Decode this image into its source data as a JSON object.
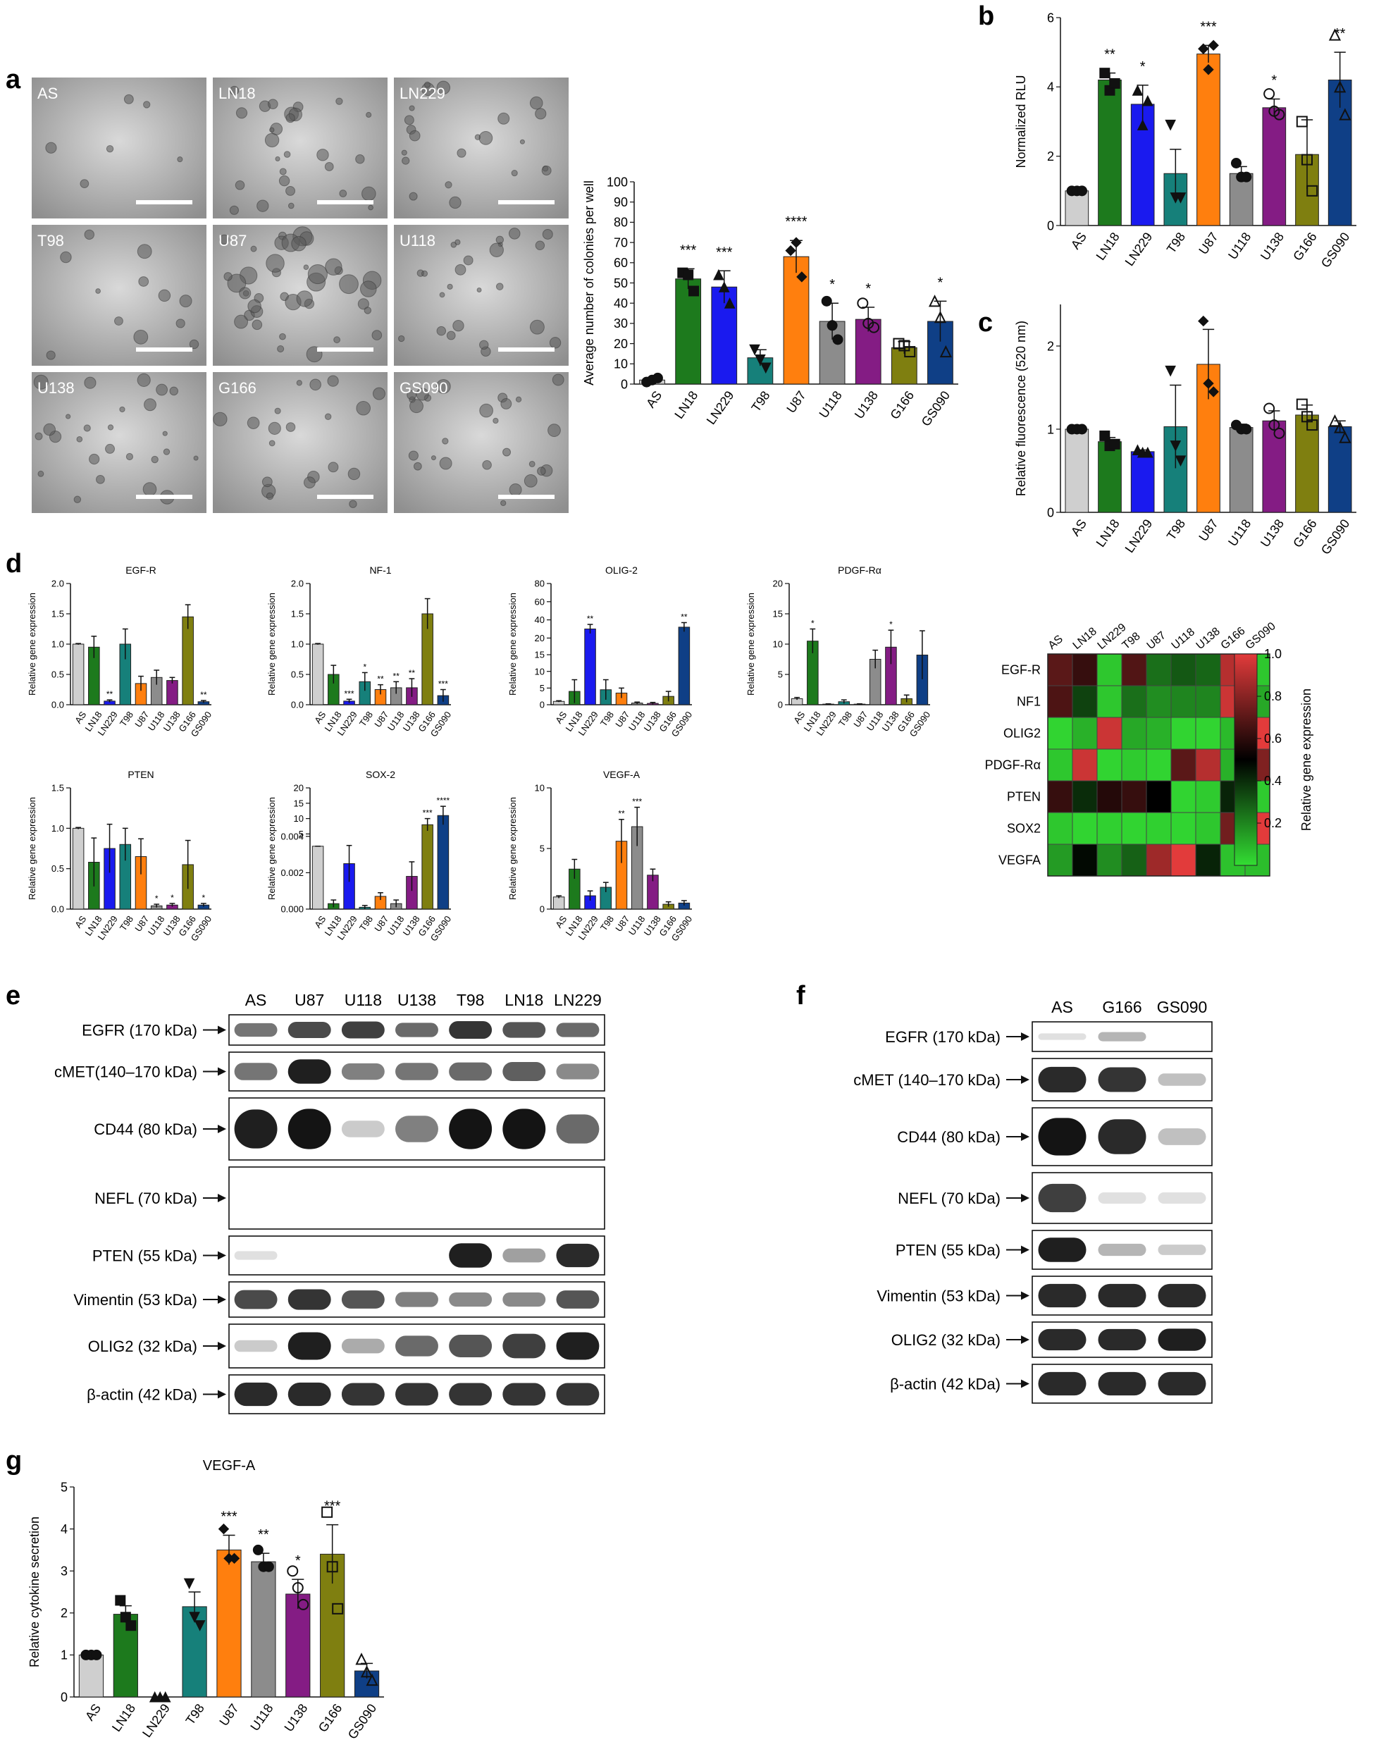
{
  "panel_letters": {
    "a": "a",
    "b": "b",
    "c": "c",
    "d": "d",
    "e": "e",
    "f": "f",
    "g": "g"
  },
  "colors": {
    "AS": "#cfcfcf",
    "LN18": "#1d7a1d",
    "LN229": "#1a1aef",
    "T98": "#16807a",
    "U87": "#ff7f0e",
    "U118": "#8c8c8c",
    "U138": "#841c84",
    "G166": "#7f7f10",
    "GS090": "#0f3f86"
  },
  "micro_labels": [
    "AS",
    "LN18",
    "LN229",
    "T98",
    "U87",
    "U118",
    "U138",
    "G166",
    "GS090"
  ],
  "chart_data": [
    {
      "id": "a",
      "type": "bar",
      "categories": [
        "AS",
        "LN18",
        "LN229",
        "T98",
        "U87",
        "U118",
        "U138",
        "G166",
        "GS090"
      ],
      "values": [
        2,
        52,
        48,
        13,
        63,
        31,
        32,
        18,
        31
      ],
      "errors": [
        1,
        5,
        8,
        4,
        8,
        9,
        6,
        3,
        10
      ],
      "points": [
        [
          1,
          2,
          3
        ],
        [
          55,
          54,
          46
        ],
        [
          54,
          48,
          40
        ],
        [
          17,
          12,
          8
        ],
        [
          66,
          70,
          53
        ],
        [
          41,
          29,
          22
        ],
        [
          40,
          30,
          28
        ],
        [
          20,
          19,
          16
        ],
        [
          41,
          33,
          16
        ]
      ],
      "markers": [
        "circle",
        "square",
        "triangle",
        "triangle-down",
        "diamond",
        "circle",
        "circle-open",
        "square-open",
        "triangle-open"
      ],
      "significance": [
        "",
        "***",
        "***",
        "",
        "****",
        "*",
        "*",
        "",
        "*"
      ],
      "ylabel": "Average number of colonies per well",
      "ylim": [
        0,
        100
      ],
      "ytick_labels": [
        "0",
        "10",
        "20",
        "30",
        "40",
        "50",
        "60",
        "70",
        "80",
        "90",
        "100"
      ]
    },
    {
      "id": "b",
      "type": "bar",
      "categories": [
        "AS",
        "LN18",
        "LN229",
        "T98",
        "U87",
        "U118",
        "U138",
        "G166",
        "GS090"
      ],
      "values": [
        1.0,
        4.2,
        3.5,
        1.5,
        4.95,
        1.5,
        3.4,
        2.05,
        4.2
      ],
      "errors": [
        0.02,
        0.2,
        0.55,
        0.7,
        0.25,
        0.2,
        0.25,
        1.0,
        0.8
      ],
      "points": [
        [
          1,
          1,
          1
        ],
        [
          4.4,
          3.9,
          4.1
        ],
        [
          3.9,
          2.9,
          3.6
        ],
        [
          2.9,
          0.8,
          0.8
        ],
        [
          5.1,
          4.5,
          5.2
        ],
        [
          1.8,
          1.4,
          1.4
        ],
        [
          3.8,
          3.3,
          3.2
        ],
        [
          3.0,
          1.9,
          1.0
        ],
        [
          5.5,
          4.0,
          3.2
        ]
      ],
      "markers": [
        "circle",
        "square",
        "triangle",
        "triangle-down",
        "diamond",
        "circle",
        "circle-open",
        "square-open",
        "triangle-open"
      ],
      "significance": [
        "",
        "**",
        "*",
        "",
        "***",
        "",
        "*",
        "",
        "**"
      ],
      "ylabel": "Normalized RLU",
      "ylim": [
        0,
        6
      ],
      "ytick_labels": [
        "0",
        "2",
        "4",
        "6"
      ]
    },
    {
      "id": "c",
      "type": "bar",
      "categories": [
        "AS",
        "LN18",
        "LN229",
        "T98",
        "U87",
        "U118",
        "U138",
        "G166",
        "GS090"
      ],
      "values": [
        1.0,
        0.85,
        0.73,
        1.03,
        1.78,
        1.02,
        1.1,
        1.17,
        1.03
      ],
      "errors": [
        0.01,
        0.05,
        0.02,
        0.5,
        0.42,
        0.04,
        0.12,
        0.12,
        0.07
      ],
      "points": [
        [
          1,
          1,
          1
        ],
        [
          0.92,
          0.8,
          0.82
        ],
        [
          0.75,
          0.72,
          0.72
        ],
        [
          1.7,
          0.8,
          0.62
        ],
        [
          2.3,
          1.55,
          1.45
        ],
        [
          1.05,
          1.0,
          1.0
        ],
        [
          1.25,
          1.05,
          0.95
        ],
        [
          1.3,
          1.15,
          1.05
        ],
        [
          1.1,
          1.02,
          0.9
        ]
      ],
      "markers": [
        "circle",
        "square",
        "triangle",
        "triangle-down",
        "diamond",
        "circle",
        "circle-open",
        "square-open",
        "triangle-open"
      ],
      "significance": [
        "",
        "",
        "",
        "",
        "",
        "",
        "",
        "",
        ""
      ],
      "ylabel": "Relative fluorescence (520 nm)",
      "ylim": [
        0,
        2.5
      ],
      "ytick_labels": [
        "0",
        "1",
        "2"
      ]
    },
    {
      "id": "d-egfr",
      "type": "bar",
      "title": "EGF-R",
      "categories": [
        "AS",
        "LN18",
        "LN229",
        "T98",
        "U87",
        "U118",
        "U138",
        "G166",
        "GS090"
      ],
      "values": [
        1.0,
        0.95,
        0.06,
        1.0,
        0.35,
        0.45,
        0.4,
        1.45,
        0.05
      ],
      "errors": [
        0.01,
        0.18,
        0.02,
        0.25,
        0.12,
        0.12,
        0.05,
        0.2,
        0.02
      ],
      "significance": [
        "",
        "",
        "**",
        "",
        "",
        "",
        "",
        "",
        "**"
      ],
      "ylabel": "Relative gene expression",
      "ylim": [
        0,
        2.0
      ],
      "ytick_labels": [
        "0.0",
        "0.5",
        "1.0",
        "1.5",
        "2.0"
      ]
    },
    {
      "id": "d-nf1",
      "type": "bar",
      "title": "NF-1",
      "categories": [
        "AS",
        "LN18",
        "LN229",
        "T98",
        "U87",
        "U118",
        "U138",
        "G166",
        "GS090"
      ],
      "values": [
        1.0,
        0.5,
        0.06,
        0.38,
        0.25,
        0.28,
        0.28,
        1.5,
        0.15
      ],
      "errors": [
        0.01,
        0.15,
        0.03,
        0.15,
        0.08,
        0.1,
        0.15,
        0.25,
        0.1
      ],
      "significance": [
        "",
        "",
        "***",
        "*",
        "**",
        "**",
        "**",
        "",
        "***"
      ],
      "ylabel": "Relative gene expression",
      "ylim": [
        0,
        2.0
      ],
      "ytick_labels": [
        "0.0",
        "0.5",
        "1.0",
        "1.5",
        "2.0"
      ]
    },
    {
      "id": "d-olig2",
      "type": "bar",
      "title": "OLIG-2",
      "categories": [
        "AS",
        "LN18",
        "LN229",
        "T98",
        "U87",
        "U118",
        "U138",
        "G166",
        "GS090"
      ],
      "values": [
        1,
        4,
        30,
        4.5,
        3.5,
        0.5,
        0.4,
        2.5,
        32
      ],
      "errors": [
        0.2,
        3.5,
        5,
        3,
        1.5,
        0.3,
        0.3,
        1.5,
        5
      ],
      "significance": [
        "",
        "",
        "**",
        "",
        "",
        "",
        "",
        "",
        "**"
      ],
      "ylabel": "Relative gene expression",
      "ylim": [
        0,
        80
      ],
      "ytick_labels": [
        "0",
        "5",
        "10",
        "15",
        "20",
        "40",
        "60",
        "80"
      ]
    },
    {
      "id": "d-pdgfra",
      "type": "bar",
      "title": "PDGF-Rα",
      "categories": [
        "AS",
        "LN18",
        "LN229",
        "T98",
        "U87",
        "U118",
        "U138",
        "G166",
        "GS090"
      ],
      "values": [
        1,
        10.5,
        0.1,
        0.5,
        0.1,
        7.5,
        9.5,
        1.0,
        8.2
      ],
      "errors": [
        0.2,
        2,
        0.05,
        0.3,
        0.05,
        1.5,
        2.8,
        0.6,
        4
      ],
      "significance": [
        "",
        "*",
        "",
        "",
        "",
        "",
        "*",
        "",
        ""
      ],
      "ylabel": "Relative gene expression",
      "ylim": [
        0,
        20
      ],
      "ytick_labels": [
        "0",
        "5",
        "10",
        "15",
        "20"
      ]
    },
    {
      "id": "d-pten",
      "type": "bar",
      "title": "PTEN",
      "categories": [
        "AS",
        "LN18",
        "LN229",
        "T98",
        "U87",
        "U118",
        "U138",
        "G166",
        "GS090"
      ],
      "values": [
        1.0,
        0.58,
        0.75,
        0.8,
        0.65,
        0.04,
        0.05,
        0.55,
        0.05
      ],
      "errors": [
        0.01,
        0.3,
        0.3,
        0.2,
        0.22,
        0.02,
        0.02,
        0.3,
        0.02
      ],
      "significance": [
        "",
        "",
        "",
        "",
        "",
        "*",
        "*",
        "",
        "*"
      ],
      "ylabel": "Relative gene expression",
      "ylim": [
        0,
        1.5
      ],
      "ytick_labels": [
        "0.0",
        "0.5",
        "1.0",
        "1.5"
      ]
    },
    {
      "id": "d-sox2",
      "type": "bar",
      "title": "SOX-2",
      "categories": [
        "AS",
        "LN18",
        "LN229",
        "T98",
        "U87",
        "U118",
        "U138",
        "G166",
        "GS090"
      ],
      "values": [
        1,
        0.0003,
        0.0025,
        0.0001,
        0.0007,
        0.0003,
        0.0018,
        8,
        11
      ],
      "errors": [
        0.01,
        0.0002,
        0.001,
        0.0001,
        0.0002,
        0.0002,
        0.0008,
        2,
        3
      ],
      "significance": [
        "",
        "",
        "",
        "",
        "",
        "",
        "",
        "***",
        "****"
      ],
      "ylabel": "Relative gene expression",
      "ylim": [
        0,
        20
      ],
      "ytick_labels": [
        "0.000",
        "0.002",
        "0.004",
        "5",
        "10",
        "15",
        "20"
      ]
    },
    {
      "id": "d-vegfa",
      "type": "bar",
      "title": "VEGF-A",
      "categories": [
        "AS",
        "LN18",
        "LN229",
        "T98",
        "U87",
        "U118",
        "U138",
        "G166",
        "GS090"
      ],
      "values": [
        1,
        3.3,
        1.1,
        1.8,
        5.6,
        6.8,
        2.8,
        0.4,
        0.5
      ],
      "errors": [
        0.1,
        0.8,
        0.4,
        0.4,
        1.8,
        1.6,
        0.5,
        0.2,
        0.2
      ],
      "significance": [
        "",
        "",
        "",
        "",
        "**",
        "***",
        "",
        "",
        ""
      ],
      "ylabel": "Relative gene expression",
      "ylim": [
        0,
        10
      ],
      "ytick_labels": [
        "0",
        "5",
        "10"
      ]
    },
    {
      "id": "d-heatmap",
      "type": "heatmap",
      "columns": [
        "AS",
        "LN18",
        "LN229",
        "T98",
        "U87",
        "U118",
        "U138",
        "G166",
        "GS090"
      ],
      "rows": [
        "EGF-R",
        "NF1",
        "OLIG2",
        "PDGF-Rα",
        "PTEN",
        "SOX2",
        "VEGFA"
      ],
      "values": [
        [
          0.7,
          0.62,
          0.05,
          0.68,
          0.25,
          0.3,
          0.27,
          0.9,
          0.05
        ],
        [
          0.67,
          0.35,
          0.05,
          0.25,
          0.18,
          0.2,
          0.2,
          0.95,
          0.12
        ],
        [
          0.02,
          0.1,
          0.95,
          0.12,
          0.1,
          0.02,
          0.02,
          0.08,
          1.0
        ],
        [
          0.05,
          0.95,
          0.02,
          0.04,
          0.02,
          0.7,
          0.9,
          0.1,
          0.78
        ],
        [
          0.62,
          0.4,
          0.58,
          0.62,
          0.5,
          0.02,
          0.04,
          0.42,
          0.04
        ],
        [
          0.05,
          0.02,
          0.03,
          0.02,
          0.03,
          0.02,
          0.05,
          0.75,
          1.0
        ],
        [
          0.15,
          0.48,
          0.18,
          0.28,
          0.85,
          1.0,
          0.42,
          0.06,
          0.07
        ]
      ],
      "colorbar_label": "Relative gene expression",
      "colorbar_ticks": [
        "0.2",
        "0.4",
        "0.6",
        "0.8",
        "1.0"
      ]
    },
    {
      "id": "g",
      "type": "bar",
      "title": "VEGF-A",
      "categories": [
        "AS",
        "LN18",
        "LN229",
        "T98",
        "U87",
        "U118",
        "U138",
        "G166",
        "GS090"
      ],
      "values": [
        1.0,
        1.97,
        0.0,
        2.15,
        3.5,
        3.22,
        2.45,
        3.4,
        0.62
      ],
      "errors": [
        0.01,
        0.2,
        0.01,
        0.35,
        0.35,
        0.2,
        0.35,
        0.7,
        0.18
      ],
      "points": [
        [
          1,
          1,
          1
        ],
        [
          2.3,
          1.9,
          1.7
        ],
        [
          0,
          0,
          0
        ],
        [
          2.7,
          1.9,
          1.7
        ],
        [
          4.0,
          3.3,
          3.3
        ],
        [
          3.5,
          3.1,
          3.1
        ],
        [
          3.0,
          2.6,
          2.2
        ],
        [
          4.4,
          3.1,
          2.1
        ],
        [
          0.9,
          0.6,
          0.4
        ]
      ],
      "markers": [
        "circle",
        "square",
        "triangle",
        "triangle-down",
        "diamond",
        "circle",
        "circle-open",
        "square-open",
        "triangle-open"
      ],
      "significance": [
        "",
        "",
        "",
        "",
        "***",
        "**",
        "*",
        "***",
        ""
      ],
      "ylabel": "Relative cytokine secretion",
      "ylim": [
        0,
        5
      ],
      "ytick_labels": [
        "0",
        "1",
        "2",
        "3",
        "4",
        "5"
      ]
    }
  ],
  "western_e": {
    "lanes": [
      "AS",
      "U87",
      "U118",
      "U138",
      "T98",
      "LN18",
      "LN229"
    ],
    "proteins": [
      {
        "label": "EGFR (170 kDa)",
        "intensity": [
          0.55,
          0.75,
          0.8,
          0.6,
          0.85,
          0.7,
          0.6
        ]
      },
      {
        "label": "cMET(140–170 kDa)",
        "intensity": [
          0.55,
          0.95,
          0.5,
          0.55,
          0.6,
          0.65,
          0.45
        ]
      },
      {
        "label": "CD44 (80 kDa)",
        "intensity": [
          0.95,
          1.0,
          0.15,
          0.5,
          1.0,
          1.0,
          0.6
        ]
      },
      {
        "label": "NEFL (70 kDa)",
        "intensity": [
          0.0,
          0.0,
          0.0,
          0.0,
          0.0,
          0.0,
          0.0
        ]
      },
      {
        "label": "PTEN (55 kDa)",
        "intensity": [
          0.05,
          0.0,
          0.0,
          0.0,
          0.95,
          0.35,
          0.9
        ]
      },
      {
        "label": "Vimentin (53 kDa)",
        "intensity": [
          0.75,
          0.85,
          0.7,
          0.5,
          0.45,
          0.45,
          0.7
        ]
      },
      {
        "label": "OLIG2 (32 kDa)",
        "intensity": [
          0.15,
          0.95,
          0.3,
          0.6,
          0.7,
          0.8,
          0.95
        ]
      },
      {
        "label": "β-actin (42 kDa)",
        "intensity": [
          0.9,
          0.9,
          0.85,
          0.85,
          0.85,
          0.85,
          0.85
        ]
      }
    ]
  },
  "western_f": {
    "lanes": [
      "AS",
      "G166",
      "GS090"
    ],
    "proteins": [
      {
        "label": "EGFR (170 kDa)",
        "intensity": [
          0.05,
          0.25,
          0.0
        ]
      },
      {
        "label": "cMET (140–170 kDa)",
        "intensity": [
          0.9,
          0.85,
          0.2
        ]
      },
      {
        "label": "CD44 (80 kDa)",
        "intensity": [
          1.0,
          0.9,
          0.2
        ]
      },
      {
        "label": "NEFL (70 kDa)",
        "intensity": [
          0.8,
          0.05,
          0.05
        ]
      },
      {
        "label": "PTEN (55 kDa)",
        "intensity": [
          0.95,
          0.25,
          0.15
        ]
      },
      {
        "label": "Vimentin (53 kDa)",
        "intensity": [
          0.9,
          0.9,
          0.9
        ]
      },
      {
        "label": "OLIG2 (32 kDa)",
        "intensity": [
          0.9,
          0.9,
          0.95
        ]
      },
      {
        "label": "β-actin (42 kDa)",
        "intensity": [
          0.9,
          0.9,
          0.9
        ]
      }
    ]
  }
}
